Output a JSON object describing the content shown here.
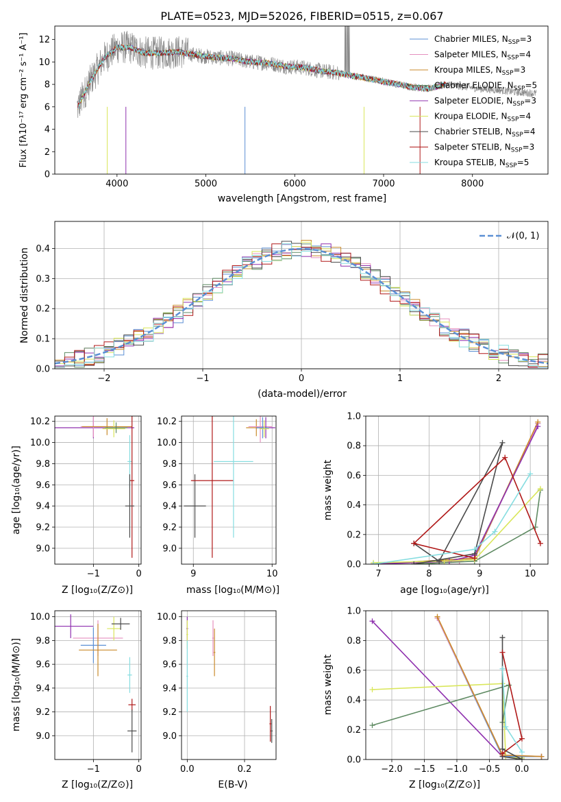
{
  "chart_data": [
    {
      "id": "spectrum",
      "type": "line",
      "title": "PLATE=0523, MJD=52026, FIBERID=0515, z=0.067",
      "xlabel": "wavelength [Angstrom, rest frame]",
      "ylabel": "Flux [fλ10⁻¹⁷ erg cm⁻² s⁻¹ A⁻¹]",
      "xlim": [
        3300,
        8850
      ],
      "ylim": [
        0,
        13.2
      ],
      "xticks": [
        4000,
        5000,
        6000,
        7000,
        8000
      ],
      "yticks": [
        0,
        2,
        4,
        6,
        8,
        10,
        12
      ],
      "grid": false,
      "legend_position": "top-right",
      "legend": [
        {
          "label": "Chabrier MILES, N",
          "sub": "SSP",
          "suffix": "=3",
          "color": "#5b8fd4"
        },
        {
          "label": "Salpeter MILES, N",
          "sub": "SSP",
          "suffix": "=4",
          "color": "#e58fbf"
        },
        {
          "label": "Kroupa MILES, N",
          "sub": "SSP",
          "suffix": "=3",
          "color": "#c98a2a"
        },
        {
          "label": "Chabrier ELODIE, N",
          "sub": "SSP",
          "suffix": "=5",
          "color": "#5e8a62"
        },
        {
          "label": "Salpeter ELODIE, N",
          "sub": "SSP",
          "suffix": "=3",
          "color": "#8e2fae"
        },
        {
          "label": "Kroupa ELODIE, N",
          "sub": "SSP",
          "suffix": "=4",
          "color": "#d9e65a"
        },
        {
          "label": "Chabrier STELIB, N",
          "sub": "SSP",
          "suffix": "=4",
          "color": "#4a4a4a"
        },
        {
          "label": "Salpeter STELIB, N",
          "sub": "SSP",
          "suffix": "=3",
          "color": "#b01818"
        },
        {
          "label": "Kroupa STELIB, N",
          "sub": "SSP",
          "suffix": "=5",
          "color": "#86dde0"
        }
      ],
      "series_continuum": {
        "x": [
          3560,
          3700,
          3850,
          4000,
          4150,
          4300,
          4500,
          4700,
          4900,
          5100,
          5300,
          5500,
          5700,
          5900,
          6100,
          6300,
          6500,
          6700,
          6900,
          7100,
          7300,
          7500,
          7700
        ],
        "y": [
          6.0,
          8.3,
          10.3,
          11.3,
          11.3,
          10.8,
          10.8,
          10.9,
          10.6,
          10.4,
          10.3,
          10.0,
          9.9,
          9.6,
          9.5,
          9.2,
          9.0,
          8.7,
          8.4,
          8.1,
          7.8,
          7.6,
          8.0
        ]
      },
      "data_continuum": {
        "x": [
          3560,
          3700,
          3850,
          4000,
          4150,
          4300,
          4500,
          4700,
          4900,
          5100,
          5300,
          5500,
          5700,
          5900,
          6100,
          6300,
          6500,
          6700,
          6900,
          7100,
          7300,
          7500,
          7700,
          7900,
          8100,
          8300,
          8500,
          8700
        ],
        "y": [
          6.0,
          8.3,
          10.3,
          11.3,
          11.3,
          10.8,
          10.8,
          10.9,
          10.6,
          10.4,
          10.3,
          10.0,
          9.9,
          9.6,
          9.5,
          9.2,
          9.0,
          8.7,
          8.4,
          8.1,
          7.8,
          7.6,
          8.0,
          7.8,
          7.6,
          7.5,
          7.3,
          7.2
        ]
      }
    },
    {
      "id": "residuals",
      "type": "line",
      "xlabel": "(data-model)/error",
      "ylabel": "Normed distribution",
      "xlim": [
        -2.5,
        2.5
      ],
      "ylim": [
        0,
        0.49
      ],
      "xticks": [
        -2,
        -1,
        0,
        1,
        2
      ],
      "yticks": [
        0.0,
        0.1,
        0.2,
        0.3,
        0.4
      ],
      "grid": true,
      "legend_position": "top-right",
      "legend": [
        {
          "label": "𝒩(0, 1)",
          "color": "#5b8fd4"
        }
      ],
      "gaussian": {
        "mu": 0,
        "sigma": 1
      }
    },
    {
      "id": "age-vs-Z",
      "type": "scatter",
      "xlabel": "Z [log₁₀(Z/Z⊙)]",
      "ylabel": "age  [log₁₀(age/yr)]",
      "xlim": [
        -1.85,
        0.05
      ],
      "ylim": [
        8.85,
        10.25
      ],
      "xticks": [
        -1,
        0
      ],
      "yticks": [
        9.0,
        9.2,
        9.4,
        9.6,
        9.8,
        10.0,
        10.2
      ],
      "grid": true,
      "points": [
        {
          "x": -1.0,
          "y": 10.14,
          "xe": 0.9,
          "ye": 0.1,
          "color": "#8e2fae"
        },
        {
          "x": -1.0,
          "y": 10.15,
          "xe": 0.28,
          "ye": 0.1,
          "color": "#e58fbf"
        },
        {
          "x": -0.7,
          "y": 10.15,
          "xe": 0.55,
          "ye": 0.08,
          "color": "#c98a2a"
        },
        {
          "x": -0.55,
          "y": 10.13,
          "xe": 0.25,
          "ye": 0.08,
          "color": "#d9e65a"
        },
        {
          "x": -0.5,
          "y": 10.14,
          "xe": 0.25,
          "ye": 0.05,
          "color": "#5e8a62"
        },
        {
          "x": -0.2,
          "y": 9.82,
          "xe": 0.05,
          "ye": 0.25,
          "color": "#86dde0"
        },
        {
          "x": -0.15,
          "y": 9.64,
          "xe": 0.05,
          "ye": 0.73,
          "color": "#b01818"
        },
        {
          "x": -0.2,
          "y": 9.4,
          "xe": 0.1,
          "ye": 0.3,
          "color": "#4a4a4a"
        }
      ]
    },
    {
      "id": "age-vs-mass",
      "type": "scatter",
      "xlabel": "mass [log₁₀(M/M⊙)]",
      "xlim": [
        8.85,
        10.05
      ],
      "ylim": [
        8.85,
        10.25
      ],
      "xticks": [
        9,
        10
      ],
      "yticks": [
        9.0,
        9.2,
        9.4,
        9.6,
        9.8,
        10.0,
        10.2
      ],
      "grid": true,
      "points": [
        {
          "x": 9.02,
          "y": 9.4,
          "xe": 0.14,
          "ye": 0.3,
          "color": "#4a4a4a"
        },
        {
          "x": 9.24,
          "y": 9.64,
          "xe": 0.27,
          "ye": 0.73,
          "color": "#b01818"
        },
        {
          "x": 9.51,
          "y": 9.82,
          "xe": 0.25,
          "ye": 0.72,
          "color": "#86dde0"
        },
        {
          "x": 9.8,
          "y": 10.14,
          "xe": 0.13,
          "ye": 0.08,
          "color": "#c98a2a"
        },
        {
          "x": 9.85,
          "y": 10.15,
          "xe": 0.15,
          "ye": 0.15,
          "color": "#e58fbf"
        },
        {
          "x": 9.92,
          "y": 10.14,
          "xe": 0.12,
          "ye": 0.1,
          "color": "#8e2fae"
        },
        {
          "x": 9.88,
          "y": 10.14,
          "xe": 0.08,
          "ye": 0.1,
          "color": "#5b8fd4"
        },
        {
          "x": 9.9,
          "y": 10.13,
          "xe": 0.06,
          "ye": 0.08,
          "color": "#d9e65a"
        }
      ]
    },
    {
      "id": "weight-vs-age",
      "type": "line",
      "xlabel": "age  [log₁₀(age/yr)]",
      "ylabel": "mass weight",
      "xlim": [
        6.75,
        10.35
      ],
      "ylim": [
        0,
        1.0
      ],
      "xticks": [
        7,
        8,
        9,
        10
      ],
      "yticks": [
        0.0,
        0.2,
        0.4,
        0.6,
        0.8,
        1.0
      ],
      "grid": true,
      "series": [
        {
          "color": "#5b8fd4",
          "x": [
            6.9,
            8.9,
            10.15
          ],
          "y": [
            0.0,
            0.04,
            0.95
          ]
        },
        {
          "color": "#e58fbf",
          "x": [
            6.9,
            8.6,
            8.9,
            10.15
          ],
          "y": [
            0.0,
            0.02,
            0.04,
            0.95
          ]
        },
        {
          "color": "#c98a2a",
          "x": [
            6.9,
            8.9,
            10.15
          ],
          "y": [
            0.0,
            0.04,
            0.96
          ]
        },
        {
          "color": "#5e8a62",
          "x": [
            7.7,
            8.9,
            10.1,
            10.2
          ],
          "y": [
            0.0,
            0.02,
            0.25,
            0.5
          ]
        },
        {
          "color": "#8e2fae",
          "x": [
            6.9,
            8.4,
            8.9,
            10.15
          ],
          "y": [
            0.0,
            0.02,
            0.06,
            0.93
          ]
        },
        {
          "color": "#d9e65a",
          "x": [
            6.9,
            8.3,
            8.9,
            10.2
          ],
          "y": [
            0.01,
            0.02,
            0.03,
            0.51
          ]
        },
        {
          "color": "#4a4a4a",
          "x": [
            7.7,
            8.9,
            9.45,
            8.2,
            7.7
          ],
          "y": [
            0.0,
            0.07,
            0.82,
            0.02,
            0.14
          ]
        },
        {
          "color": "#b01818",
          "x": [
            10.2,
            9.5,
            7.7,
            8.9
          ],
          "y": [
            0.14,
            0.72,
            0.14,
            0.04
          ]
        },
        {
          "color": "#86dde0",
          "x": [
            6.9,
            8.9,
            9.3,
            10.0
          ],
          "y": [
            0.0,
            0.1,
            0.22,
            0.61
          ]
        }
      ]
    },
    {
      "id": "mass-vs-Z",
      "type": "scatter",
      "xlabel": "Z [log₁₀(Z/Z⊙)]",
      "ylabel": "mass [log₁₀(M/M⊙)]",
      "xlim": [
        -1.85,
        0.05
      ],
      "ylim": [
        8.8,
        10.05
      ],
      "xticks": [
        -1,
        0
      ],
      "yticks": [
        9.0,
        9.2,
        9.4,
        9.6,
        9.8,
        10.0
      ],
      "grid": true,
      "points": [
        {
          "x": -1.5,
          "y": 9.92,
          "xe": 0.5,
          "ye": 0.1,
          "color": "#8e2fae"
        },
        {
          "x": -0.9,
          "y": 9.82,
          "xe": 0.55,
          "ye": 0.15,
          "color": "#e58fbf"
        },
        {
          "x": -1.0,
          "y": 9.76,
          "xe": 0.28,
          "ye": 0.15,
          "color": "#5b8fd4"
        },
        {
          "x": -0.9,
          "y": 9.72,
          "xe": 0.42,
          "ye": 0.22,
          "color": "#c98a2a"
        },
        {
          "x": -0.55,
          "y": 9.9,
          "xe": 0.15,
          "ye": 0.1,
          "color": "#d9e65a"
        },
        {
          "x": -0.4,
          "y": 9.94,
          "xe": 0.2,
          "ye": 0.05,
          "color": "#4a4a4a"
        },
        {
          "x": -0.2,
          "y": 9.51,
          "xe": 0.05,
          "ye": 0.15,
          "color": "#86dde0"
        },
        {
          "x": -0.15,
          "y": 9.26,
          "xe": 0.08,
          "ye": 0.05,
          "color": "#b01818"
        },
        {
          "x": -0.15,
          "y": 9.04,
          "xe": 0.1,
          "ye": 0.18,
          "color": "#4a4a4a"
        }
      ]
    },
    {
      "id": "mass-vs-EBV",
      "type": "scatter",
      "xlabel": "E(B-V)",
      "xlim": [
        -0.02,
        0.31
      ],
      "ylim": [
        8.8,
        10.05
      ],
      "xticks": [
        0.0,
        0.2
      ],
      "yticks": [
        9.0,
        9.2,
        9.4,
        9.6,
        9.8,
        10.0
      ],
      "grid": true,
      "points": [
        {
          "x": 0.0,
          "y": 9.9,
          "xe": 0.003,
          "ye": 0.1,
          "color": "#8e2fae"
        },
        {
          "x": 0.0,
          "y": 9.85,
          "xe": 0.003,
          "ye": 0.12,
          "color": "#d9e65a"
        },
        {
          "x": 0.0,
          "y": 9.5,
          "xe": 0.003,
          "ye": 0.3,
          "color": "#86dde0"
        },
        {
          "x": 0.09,
          "y": 9.82,
          "xe": 0.003,
          "ye": 0.15,
          "color": "#e58fbf"
        },
        {
          "x": 0.095,
          "y": 9.7,
          "xe": 0.003,
          "ye": 0.2,
          "color": "#c98a2a"
        },
        {
          "x": 0.29,
          "y": 9.1,
          "xe": 0.003,
          "ye": 0.15,
          "color": "#b01818"
        },
        {
          "x": 0.295,
          "y": 9.04,
          "xe": 0.003,
          "ye": 0.1,
          "color": "#4a4a4a"
        }
      ]
    },
    {
      "id": "weight-vs-Z",
      "type": "line",
      "xlabel": "Z [log₁₀(Z/Z⊙)]",
      "ylabel": "mass weight",
      "xlim": [
        -2.4,
        0.4
      ],
      "ylim": [
        0,
        1.0
      ],
      "xticks": [
        -2.0,
        -1.5,
        -1.0,
        -0.5,
        0.0
      ],
      "yticks": [
        0.0,
        0.2,
        0.4,
        0.6,
        0.8,
        1.0
      ],
      "grid": true,
      "series": [
        {
          "color": "#8e2fae",
          "x": [
            -2.3,
            -0.3,
            0.3
          ],
          "y": [
            0.93,
            0.02,
            0.02
          ]
        },
        {
          "color": "#d9e65a",
          "x": [
            -2.3,
            -0.3,
            -0.25,
            0.0
          ],
          "y": [
            0.47,
            0.51,
            0.02,
            0.01
          ]
        },
        {
          "color": "#5e8a62",
          "x": [
            -2.3,
            -0.2,
            -0.3
          ],
          "y": [
            0.23,
            0.5,
            0.25
          ]
        },
        {
          "color": "#5b8fd4",
          "x": [
            -1.3,
            -0.3,
            0.3
          ],
          "y": [
            0.95,
            0.02,
            0.02
          ]
        },
        {
          "color": "#e58fbf",
          "x": [
            -1.3,
            -0.3,
            0.3
          ],
          "y": [
            0.95,
            0.03,
            0.02
          ]
        },
        {
          "color": "#c98a2a",
          "x": [
            -1.3,
            -0.3,
            0.3
          ],
          "y": [
            0.96,
            0.03,
            0.02
          ]
        },
        {
          "color": "#4a4a4a",
          "x": [
            -0.3,
            -0.3,
            0.0,
            -0.3
          ],
          "y": [
            0.82,
            0.07,
            0.0,
            0.02
          ]
        },
        {
          "color": "#b01818",
          "x": [
            -0.3,
            0.0,
            -0.3
          ],
          "y": [
            0.72,
            0.14,
            0.04
          ]
        },
        {
          "color": "#86dde0",
          "x": [
            -0.3,
            -0.25,
            0.0
          ],
          "y": [
            0.61,
            0.22,
            0.05
          ]
        }
      ]
    }
  ]
}
